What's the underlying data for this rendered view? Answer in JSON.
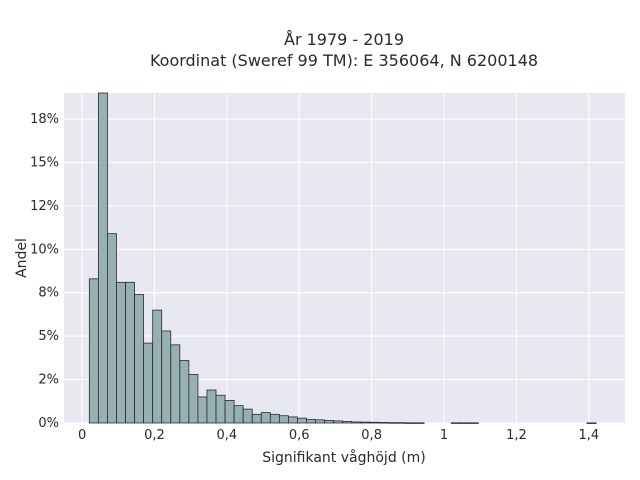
{
  "chart_data": {
    "type": "bar",
    "title_line1": "År 1979 - 2019",
    "title_line2": "Koordinat (Sweref 99 TM): E 356064, N 6200148",
    "xlabel": "Signifikant våghöjd (m)",
    "ylabel": "Andel",
    "xlim": [
      -0.05,
      1.5
    ],
    "ylim": [
      0,
      0.19
    ],
    "grid": true,
    "x_ticks": [
      {
        "value": 0,
        "label": "0"
      },
      {
        "value": 0.2,
        "label": "0,2"
      },
      {
        "value": 0.4,
        "label": "0,4"
      },
      {
        "value": 0.6,
        "label": "0,6"
      },
      {
        "value": 0.8,
        "label": "0,8"
      },
      {
        "value": 1.0,
        "label": "1"
      },
      {
        "value": 1.2,
        "label": "1,2"
      },
      {
        "value": 1.4,
        "label": "1,4"
      }
    ],
    "y_ticks": [
      {
        "value": 0,
        "label": "0%"
      },
      {
        "value": 0.025,
        "label": "2%"
      },
      {
        "value": 0.05,
        "label": "5%"
      },
      {
        "value": 0.075,
        "label": "8%"
      },
      {
        "value": 0.1,
        "label": "10%"
      },
      {
        "value": 0.125,
        "label": "12%"
      },
      {
        "value": 0.15,
        "label": "15%"
      },
      {
        "value": 0.175,
        "label": "18%"
      }
    ],
    "bin_width": 0.025,
    "bin_start": 0.02,
    "values": [
      0.083,
      0.19,
      0.109,
      0.081,
      0.081,
      0.074,
      0.046,
      0.065,
      0.053,
      0.045,
      0.036,
      0.028,
      0.015,
      0.019,
      0.016,
      0.013,
      0.01,
      0.008,
      0.005,
      0.006,
      0.005,
      0.0042,
      0.0035,
      0.0028,
      0.002,
      0.0018,
      0.0015,
      0.0012,
      0.0009,
      0.0006,
      0.0005,
      0.0004,
      0.0003,
      0.0002,
      0.0002,
      0.0001,
      0.0001,
      0,
      0,
      0,
      0.0001,
      0.0001,
      0.0001,
      0,
      0,
      0,
      0,
      0,
      0,
      0,
      0,
      0,
      0,
      0,
      0,
      5e-05
    ]
  }
}
